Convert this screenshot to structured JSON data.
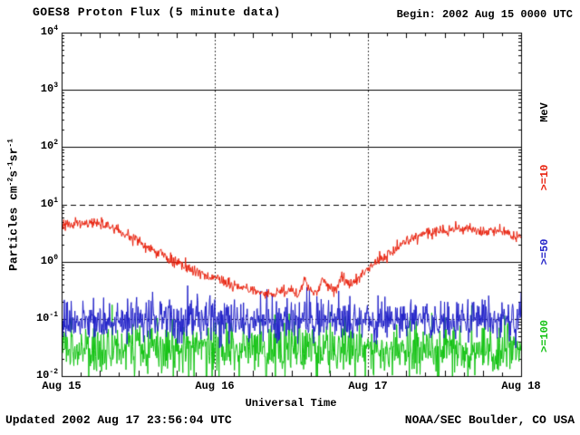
{
  "header": {
    "title": "GOES8 Proton Flux (5 minute data)",
    "begin_label": "Begin: 2002 Aug 15 0000 UTC"
  },
  "footer": {
    "updated_label": "Updated 2002 Aug 17 23:56:04 UTC",
    "source_label": "NOAA/SEC Boulder, CO USA"
  },
  "axes": {
    "xlabel": "Universal Time",
    "ylabel_plain": "Particles cm-2 s-1 sr-1",
    "ylabel_parts": [
      {
        "t": "Particles cm"
      },
      {
        "s": "-2"
      },
      {
        "t": "s"
      },
      {
        "s": "-1"
      },
      {
        "t": "sr"
      },
      {
        "s": "-1"
      }
    ],
    "right_unit_label": "MeV"
  },
  "chart_data": {
    "type": "line",
    "title": "GOES8 Proton Flux (5 minute data)",
    "subtitle": "Begin: 2002 Aug 15 0000 UTC",
    "xlabel": "Universal Time",
    "ylabel": "Particles cm-2 s-1 sr-1",
    "x_axis": {
      "range_hours": [
        0,
        72
      ],
      "tick_labels": [
        "Aug 15",
        "Aug 16",
        "Aug 17",
        "Aug 18"
      ],
      "minor_tick_hours": 3
    },
    "y_axis": {
      "scale": "log10",
      "range": [
        0.01,
        10000
      ],
      "tick_exponents": [
        4,
        3,
        2,
        1,
        0,
        -1,
        -2
      ]
    },
    "gridlines": {
      "horizontal_solid_exponents": [
        3,
        2,
        0
      ],
      "horizontal_dashed_exponents": [
        1
      ],
      "horizontal_dotted_exponents": [
        -1
      ],
      "vertical_dotted_hours": [
        24,
        48
      ]
    },
    "series": [
      {
        "name": ">=10",
        "unit": "MeV",
        "color": "#e8200c",
        "sample_minutes": 5,
        "noise_log10_sigma": 0.05,
        "keypoints_hours": [
          0,
          2,
          4,
          6,
          8,
          10,
          12,
          14,
          16,
          18,
          20,
          22,
          24,
          26,
          28,
          30,
          32,
          34,
          36,
          37,
          38,
          39,
          40,
          41,
          42,
          43,
          44,
          45,
          46,
          47,
          48,
          50,
          52,
          54,
          56,
          58,
          60,
          62,
          64,
          66,
          68,
          70,
          71,
          72
        ],
        "keypoints_flux": [
          4.2,
          4.5,
          4.8,
          4.6,
          3.9,
          3.0,
          2.2,
          1.7,
          1.25,
          0.95,
          0.75,
          0.6,
          0.5,
          0.42,
          0.35,
          0.3,
          0.26,
          0.3,
          0.33,
          0.25,
          0.45,
          0.3,
          0.28,
          0.5,
          0.35,
          0.3,
          0.55,
          0.4,
          0.45,
          0.6,
          0.75,
          1.1,
          1.6,
          2.3,
          2.8,
          3.1,
          3.3,
          3.6,
          3.8,
          3.4,
          3.5,
          3.1,
          2.6,
          2.9
        ]
      },
      {
        "name": ">=50",
        "unit": "MeV",
        "color": "#2121c8",
        "sample_minutes": 5,
        "baseline_flux": 0.095,
        "noise_log10_sigma": 0.18,
        "spike_probability": 0.04,
        "spike_log10_max": 0.45
      },
      {
        "name": ">=100",
        "unit": "MeV",
        "color": "#12c212",
        "sample_minutes": 5,
        "baseline_flux": 0.03,
        "noise_log10_sigma": 0.24,
        "spike_probability": 0.02,
        "spike_log10_max": 0.4
      }
    ]
  }
}
